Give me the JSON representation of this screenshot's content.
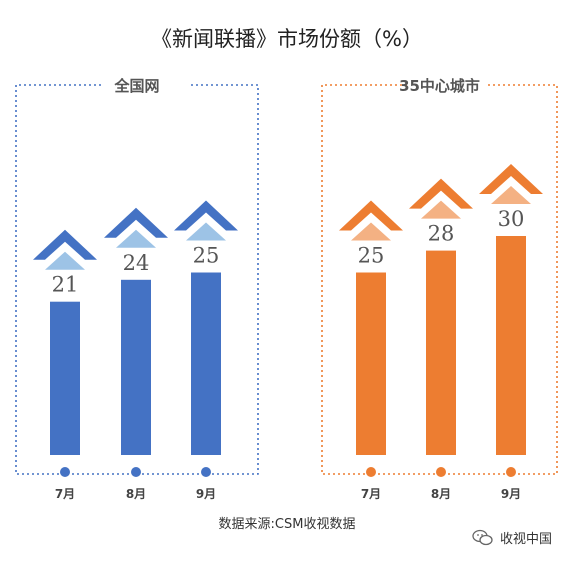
{
  "title": "《新闻联播》市场份额（%）",
  "source": "数据来源:CSM收视数据",
  "watermark": "收视中国",
  "colors": {
    "blue": "#4472C4",
    "blue_light": "#9DC3E6",
    "orange": "#ED7D31",
    "orange_light": "#F4B183"
  },
  "chart_data": [
    {
      "type": "bar",
      "title": "全国网",
      "categories": [
        "7月",
        "8月",
        "9月"
      ],
      "values": [
        21,
        24,
        25
      ],
      "color": "#4472C4",
      "light_color": "#9DC3E6"
    },
    {
      "type": "bar",
      "title": "35中心城市",
      "categories": [
        "7月",
        "8月",
        "9月"
      ],
      "values": [
        25,
        28,
        30
      ],
      "color": "#ED7D31",
      "light_color": "#F4B183"
    }
  ]
}
